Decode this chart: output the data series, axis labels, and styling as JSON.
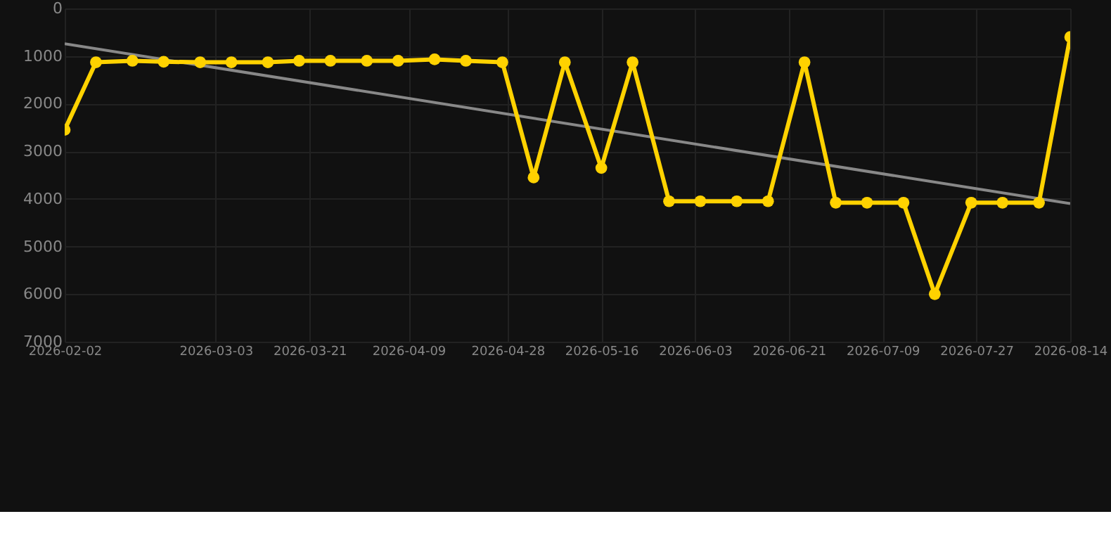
{
  "chart_data": {
    "type": "line",
    "x": [
      "2026-02-02",
      "2026-02-08",
      "2026-02-15",
      "2026-02-21",
      "2026-02-28",
      "2026-03-06",
      "2026-03-13",
      "2026-03-19",
      "2026-03-25",
      "2026-04-01",
      "2026-04-07",
      "2026-04-14",
      "2026-04-20",
      "2026-04-27",
      "2026-05-03",
      "2026-05-09",
      "2026-05-16",
      "2026-05-22",
      "2026-05-29",
      "2026-06-04",
      "2026-06-11",
      "2026-06-17",
      "2026-06-24",
      "2026-06-30",
      "2026-07-06",
      "2026-07-13",
      "2026-07-19",
      "2026-07-26",
      "2026-08-01",
      "2026-08-08",
      "2026-08-14"
    ],
    "series": [
      {
        "type": "line",
        "color": "#ffd200",
        "marker": "circle",
        "values": [
          2550,
          1130,
          1100,
          1120,
          1130,
          1130,
          1130,
          1100,
          1100,
          1100,
          1100,
          1070,
          1100,
          1130,
          3550,
          1130,
          3350,
          1130,
          4050,
          4050,
          4050,
          4050,
          1130,
          4080,
          4080,
          4080,
          6000,
          4080,
          4080,
          4080,
          600
        ]
      },
      {
        "type": "line",
        "color": "#888888",
        "marker": "none",
        "x": [
          "2026-02-02",
          "2026-08-14"
        ],
        "values": [
          740,
          4100
        ]
      }
    ],
    "xlim": [
      "2026-02-02",
      "2026-08-14"
    ],
    "xticks": [
      "2026-02-02",
      "2026-03-03",
      "2026-03-21",
      "2026-04-09",
      "2026-04-28",
      "2026-05-16",
      "2026-06-03",
      "2026-06-21",
      "2026-07-09",
      "2026-07-27",
      "2026-08-14"
    ],
    "ylim": [
      7000,
      0
    ],
    "yticks": [
      0,
      1000,
      2000,
      3000,
      4000,
      5000,
      6000,
      7000
    ],
    "grid": true
  }
}
